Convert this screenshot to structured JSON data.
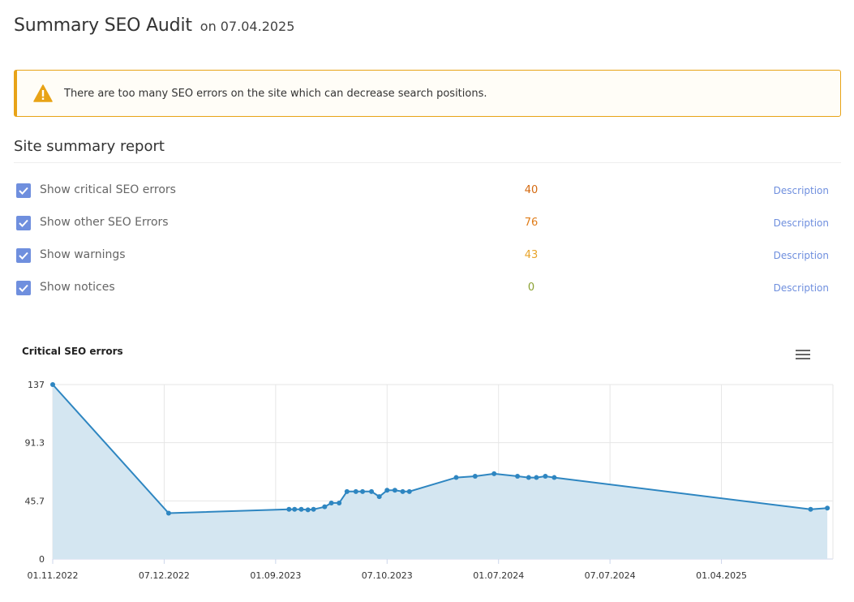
{
  "header": {
    "title": "Summary SEO Audit",
    "date_text": "on 07.04.2025"
  },
  "alert": {
    "icon": "warning-icon",
    "color": "#e8a317",
    "message": "There are too many SEO errors on the site which can decrease search positions."
  },
  "section": {
    "title": "Site summary report"
  },
  "filters": [
    {
      "label": "Show critical SEO errors",
      "count": "40",
      "count_color": "#d4690f",
      "desc_label": "Description",
      "checked": true
    },
    {
      "label": "Show other SEO Errors",
      "count": "76",
      "count_color": "#e07c18",
      "desc_label": "Description",
      "checked": true
    },
    {
      "label": "Show warnings",
      "count": "43",
      "count_color": "#e8a42a",
      "desc_label": "Description",
      "checked": true
    },
    {
      "label": "Show notices",
      "count": "0",
      "count_color": "#8aa030",
      "desc_label": "Description",
      "checked": true
    }
  ],
  "chart_data": {
    "type": "area",
    "title": "Critical SEO errors",
    "x_ticks": [
      "01.11.2022",
      "07.12.2022",
      "01.09.2023",
      "07.10.2023",
      "01.07.2024",
      "07.07.2024",
      "01.04.2025"
    ],
    "y_ticks": [
      "137",
      "91.3",
      "45.7",
      "0"
    ],
    "ylim": [
      0,
      137
    ],
    "grid": true,
    "legend": "none",
    "series": [
      {
        "color": "#2e86c1",
        "fill": "#d4e6f1",
        "x": [
          0.0,
          1.04,
          2.12,
          2.17,
          2.23,
          2.29,
          2.34,
          2.44,
          2.5,
          2.57,
          2.64,
          2.72,
          2.78,
          2.86,
          2.93,
          3.0,
          3.07,
          3.14,
          3.2,
          3.62,
          3.79,
          3.96,
          4.17,
          4.27,
          4.34,
          4.42,
          4.5,
          6.8,
          6.95
        ],
        "values": [
          137,
          36,
          39,
          39,
          39,
          38.6,
          39,
          41,
          44,
          44,
          53,
          53,
          53,
          53,
          49,
          54,
          54,
          53,
          53,
          64,
          65,
          67,
          65,
          64,
          64,
          65,
          64,
          39,
          40
        ]
      }
    ]
  }
}
